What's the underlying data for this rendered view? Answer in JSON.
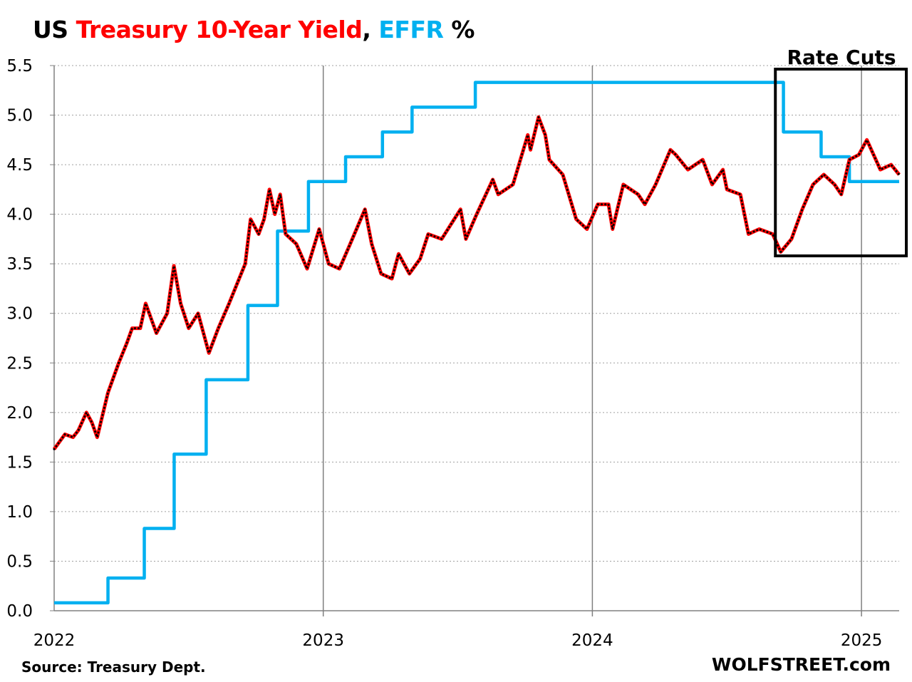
{
  "chart_data": {
    "type": "line",
    "title_parts": {
      "prefix": "US ",
      "series1": "Treasury 10-Year Yield",
      "sep": ", ",
      "series2": "EFFR",
      "suffix": " %"
    },
    "xlabel": "",
    "ylabel": "",
    "ylim": [
      0,
      5.5
    ],
    "xlim": [
      2022.0,
      2025.14
    ],
    "y_ticks": [
      "0.0",
      "0.5",
      "1.0",
      "1.5",
      "2.0",
      "2.5",
      "3.0",
      "3.5",
      "4.0",
      "4.5",
      "5.0",
      "5.5"
    ],
    "x_ticks": [
      {
        "label": "2022",
        "x": 2022
      },
      {
        "label": "2023",
        "x": 2023
      },
      {
        "label": "2024",
        "x": 2024
      },
      {
        "label": "2025",
        "x": 2025
      }
    ],
    "grid": "horizontal dotted, vertical at year boundaries",
    "annotation": {
      "text": "Rate Cuts",
      "x_range": [
        2024.68,
        2025.14
      ],
      "y_range": [
        3.58,
        5.5
      ]
    },
    "source": "Source: Treasury Dept.",
    "watermark": "WOLFSTREET.com",
    "colors": {
      "yield": "#ff0000",
      "effr": "#00b0f0"
    },
    "series": [
      {
        "name": "Treasury 10-Year Yield",
        "color": "#ff0000",
        "points": [
          [
            2022.0,
            1.63
          ],
          [
            2022.04,
            1.78
          ],
          [
            2022.07,
            1.75
          ],
          [
            2022.09,
            1.82
          ],
          [
            2022.12,
            2.0
          ],
          [
            2022.14,
            1.9
          ],
          [
            2022.16,
            1.75
          ],
          [
            2022.2,
            2.2
          ],
          [
            2022.24,
            2.5
          ],
          [
            2022.27,
            2.7
          ],
          [
            2022.29,
            2.85
          ],
          [
            2022.32,
            2.85
          ],
          [
            2022.34,
            3.1
          ],
          [
            2022.38,
            2.8
          ],
          [
            2022.42,
            3.0
          ],
          [
            2022.445,
            3.48
          ],
          [
            2022.47,
            3.1
          ],
          [
            2022.5,
            2.85
          ],
          [
            2022.535,
            3.0
          ],
          [
            2022.575,
            2.6
          ],
          [
            2022.61,
            2.85
          ],
          [
            2022.65,
            3.1
          ],
          [
            2022.71,
            3.5
          ],
          [
            2022.73,
            3.95
          ],
          [
            2022.76,
            3.8
          ],
          [
            2022.78,
            3.95
          ],
          [
            2022.8,
            4.25
          ],
          [
            2022.82,
            4.0
          ],
          [
            2022.84,
            4.2
          ],
          [
            2022.86,
            3.8
          ],
          [
            2022.9,
            3.7
          ],
          [
            2022.94,
            3.45
          ],
          [
            2022.985,
            3.85
          ],
          [
            2023.02,
            3.5
          ],
          [
            2023.06,
            3.45
          ],
          [
            2023.1,
            3.7
          ],
          [
            2023.155,
            4.05
          ],
          [
            2023.18,
            3.7
          ],
          [
            2023.215,
            3.4
          ],
          [
            2023.255,
            3.35
          ],
          [
            2023.28,
            3.6
          ],
          [
            2023.32,
            3.4
          ],
          [
            2023.36,
            3.55
          ],
          [
            2023.39,
            3.8
          ],
          [
            2023.44,
            3.75
          ],
          [
            2023.51,
            4.05
          ],
          [
            2023.53,
            3.75
          ],
          [
            2023.57,
            4.0
          ],
          [
            2023.63,
            4.35
          ],
          [
            2023.65,
            4.2
          ],
          [
            2023.705,
            4.3
          ],
          [
            2023.76,
            4.8
          ],
          [
            2023.77,
            4.65
          ],
          [
            2023.8,
            4.98
          ],
          [
            2023.825,
            4.8
          ],
          [
            2023.84,
            4.55
          ],
          [
            2023.89,
            4.4
          ],
          [
            2023.94,
            3.95
          ],
          [
            2023.98,
            3.85
          ],
          [
            2024.02,
            4.1
          ],
          [
            2024.06,
            4.1
          ],
          [
            2024.075,
            3.85
          ],
          [
            2024.115,
            4.3
          ],
          [
            2024.17,
            4.2
          ],
          [
            2024.195,
            4.1
          ],
          [
            2024.235,
            4.3
          ],
          [
            2024.29,
            4.65
          ],
          [
            2024.31,
            4.6
          ],
          [
            2024.355,
            4.45
          ],
          [
            2024.41,
            4.55
          ],
          [
            2024.445,
            4.3
          ],
          [
            2024.485,
            4.45
          ],
          [
            2024.5,
            4.25
          ],
          [
            2024.55,
            4.2
          ],
          [
            2024.58,
            3.8
          ],
          [
            2024.62,
            3.85
          ],
          [
            2024.67,
            3.8
          ],
          [
            2024.7,
            3.62
          ],
          [
            2024.74,
            3.75
          ],
          [
            2024.78,
            4.05
          ],
          [
            2024.82,
            4.3
          ],
          [
            2024.86,
            4.4
          ],
          [
            2024.9,
            4.3
          ],
          [
            2024.925,
            4.2
          ],
          [
            2024.955,
            4.55
          ],
          [
            2024.99,
            4.6
          ],
          [
            2025.02,
            4.75
          ],
          [
            2025.07,
            4.45
          ],
          [
            2025.11,
            4.5
          ],
          [
            2025.14,
            4.4
          ]
        ]
      },
      {
        "name": "EFFR",
        "color": "#00b0f0",
        "steps": [
          [
            2022.0,
            0.08
          ],
          [
            2022.2,
            0.33
          ],
          [
            2022.335,
            0.83
          ],
          [
            2022.446,
            1.58
          ],
          [
            2022.565,
            2.33
          ],
          [
            2022.72,
            3.08
          ],
          [
            2022.83,
            3.83
          ],
          [
            2022.945,
            4.33
          ],
          [
            2023.083,
            4.58
          ],
          [
            2023.22,
            4.83
          ],
          [
            2023.33,
            5.08
          ],
          [
            2023.565,
            5.33
          ],
          [
            2024.71,
            4.83
          ],
          [
            2024.85,
            4.58
          ],
          [
            2024.955,
            4.33
          ],
          [
            2025.14,
            4.33
          ]
        ]
      }
    ]
  }
}
